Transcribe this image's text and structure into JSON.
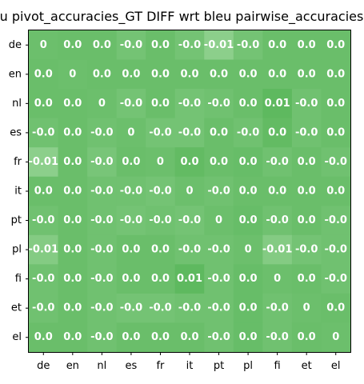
{
  "chart_data": {
    "type": "heatmap",
    "title": "u pivot_accuracies_GT DIFF wrt bleu pairwise_accuracies",
    "x_categories": [
      "de",
      "en",
      "nl",
      "es",
      "fr",
      "it",
      "pt",
      "pl",
      "fi",
      "et",
      "el"
    ],
    "y_categories": [
      "de",
      "en",
      "nl",
      "es",
      "fr",
      "it",
      "pt",
      "pl",
      "fi",
      "et",
      "el"
    ],
    "cell_labels": [
      [
        "0",
        "0.0",
        "0.0",
        "-0.0",
        "0.0",
        "-0.0",
        "-0.01",
        "-0.0",
        "0.0",
        "0.0",
        "0.0"
      ],
      [
        "0.0",
        "0",
        "0.0",
        "0.0",
        "0.0",
        "0.0",
        "0.0",
        "0.0",
        "0.0",
        "0.0",
        "0.0"
      ],
      [
        "0.0",
        "0.0",
        "0",
        "-0.0",
        "0.0",
        "-0.0",
        "-0.0",
        "0.0",
        "0.01",
        "-0.0",
        "0.0"
      ],
      [
        "-0.0",
        "0.0",
        "-0.0",
        "0",
        "-0.0",
        "-0.0",
        "0.0",
        "-0.0",
        "0.0",
        "-0.0",
        "0.0"
      ],
      [
        "-0.01",
        "0.0",
        "-0.0",
        "0.0",
        "0",
        "0.0",
        "0.0",
        "0.0",
        "-0.0",
        "0.0",
        "-0.0"
      ],
      [
        "0.0",
        "0.0",
        "-0.0",
        "-0.0",
        "-0.0",
        "0",
        "-0.0",
        "0.0",
        "0.0",
        "0.0",
        "0.0"
      ],
      [
        "-0.0",
        "0.0",
        "-0.0",
        "-0.0",
        "-0.0",
        "-0.0",
        "0",
        "0.0",
        "-0.0",
        "0.0",
        "-0.0"
      ],
      [
        "-0.01",
        "0.0",
        "-0.0",
        "0.0",
        "0.0",
        "-0.0",
        "-0.0",
        "0",
        "-0.01",
        "-0.0",
        "-0.0"
      ],
      [
        "-0.0",
        "0.0",
        "-0.0",
        "0.0",
        "0.0",
        "0.01",
        "-0.0",
        "0.0",
        "0",
        "0.0",
        "-0.0"
      ],
      [
        "-0.0",
        "0.0",
        "-0.0",
        "-0.0",
        "-0.0",
        "-0.0",
        "-0.0",
        "0.0",
        "-0.0",
        "0",
        "0.0"
      ],
      [
        "0.0",
        "0.0",
        "-0.0",
        "0.0",
        "0.0",
        "0.0",
        "-0.0",
        "0.0",
        "-0.0",
        "0.0",
        "0"
      ]
    ],
    "values": [
      [
        0,
        0.001,
        0.001,
        -0.002,
        0.001,
        -0.002,
        -0.008,
        -0.002,
        0.001,
        0.001,
        0.001
      ],
      [
        0.001,
        0,
        0.001,
        0.001,
        0.001,
        0.001,
        0.001,
        0.001,
        0.001,
        0.001,
        0.001
      ],
      [
        0.001,
        0.001,
        0,
        -0.002,
        0.001,
        -0.002,
        -0.001,
        0.001,
        0.006,
        -0.001,
        0.001
      ],
      [
        -0.001,
        0.001,
        -0.001,
        0,
        -0.002,
        -0.002,
        0.001,
        -0.001,
        0.004,
        -0.001,
        0.001
      ],
      [
        -0.008,
        0.001,
        -0.003,
        0.001,
        0,
        0.004,
        0.001,
        0.002,
        -0.001,
        0.001,
        -0.001
      ],
      [
        0.001,
        0.001,
        -0.001,
        -0.001,
        -0.002,
        0,
        -0.001,
        0.001,
        0.001,
        0.001,
        0.001
      ],
      [
        -0.001,
        0.001,
        -0.001,
        -0.002,
        -0.001,
        -0.002,
        0,
        0.002,
        -0.001,
        0.001,
        -0.001
      ],
      [
        -0.006,
        0.001,
        -0.001,
        0.001,
        0.001,
        -0.001,
        -0.001,
        0,
        -0.006,
        -0.002,
        -0.001
      ],
      [
        -0.001,
        0.001,
        -0.001,
        0.001,
        0.001,
        0.006,
        -0.001,
        0.002,
        0,
        0.001,
        -0.001
      ],
      [
        -0.001,
        0.001,
        -0.001,
        -0.002,
        -0.002,
        -0.001,
        -0.001,
        0.002,
        -0.001,
        0,
        0.001
      ],
      [
        0.001,
        0.001,
        -0.001,
        0.001,
        0.001,
        0.001,
        -0.001,
        0.002,
        -0.001,
        0.001,
        0
      ]
    ],
    "colors": {
      "base": "#6cbf6c",
      "positive": "#59b75a",
      "negative": "#8ccf8b",
      "cell_text": "#ffffff",
      "axis": "#000000"
    }
  }
}
